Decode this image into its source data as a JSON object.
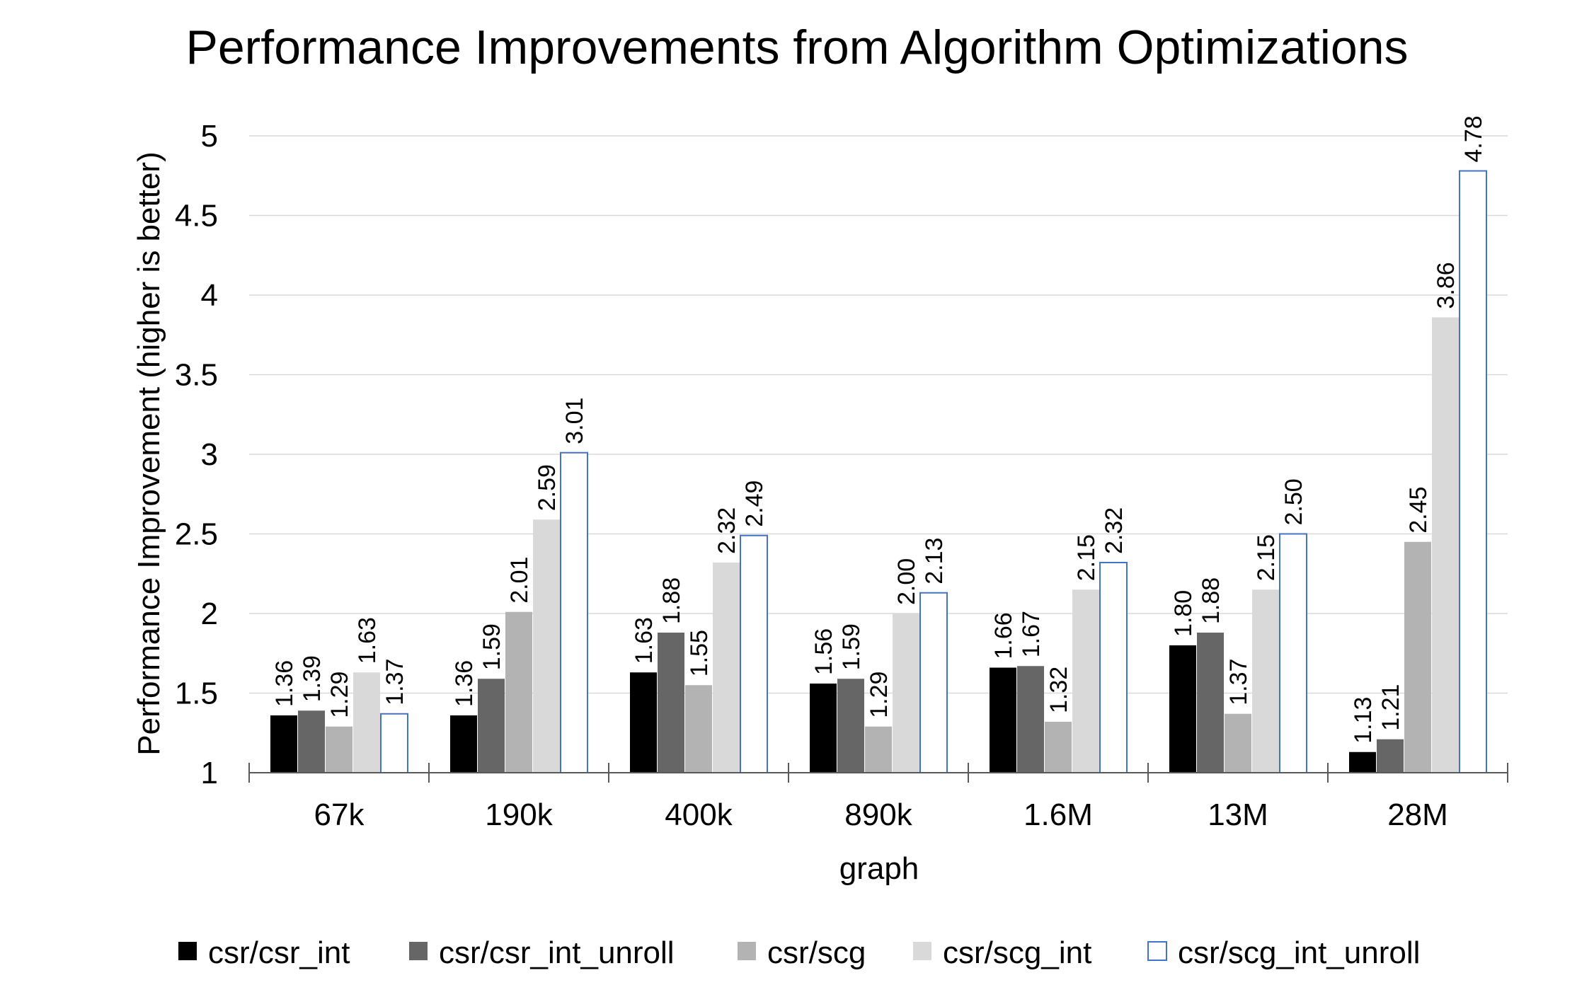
{
  "chart_data": {
    "type": "bar",
    "title": "Performance Improvements from Algorithm Optimizations",
    "xlabel": "graph",
    "ylabel": "Performance Improvement (higher is better)",
    "ylim": [
      1,
      5
    ],
    "yticks": [
      "1",
      "1.5",
      "2",
      "2.5",
      "3",
      "3.5",
      "4",
      "4.5",
      "5"
    ],
    "categories": [
      "67k",
      "190k",
      "400k",
      "890k",
      "1.6M",
      "13M",
      "28M"
    ],
    "grid": true,
    "legend_position": "bottom",
    "series": [
      {
        "name": "csr/csr_int",
        "color": "#000000",
        "outline": "#000000",
        "values": [
          1.36,
          1.36,
          1.63,
          1.56,
          1.66,
          1.8,
          1.13
        ],
        "labels": [
          "1.36",
          "1.36",
          "1.63",
          "1.56",
          "1.66",
          "1.80",
          "1.13"
        ]
      },
      {
        "name": "csr/csr_int_unroll",
        "color": "#666666",
        "outline": "#666666",
        "values": [
          1.39,
          1.59,
          1.88,
          1.59,
          1.67,
          1.88,
          1.21
        ],
        "labels": [
          "1.39",
          "1.59",
          "1.88",
          "1.59",
          "1.67",
          "1.88",
          "1.21"
        ]
      },
      {
        "name": "csr/scg",
        "color": "#b3b3b3",
        "outline": "#b3b3b3",
        "values": [
          1.29,
          2.01,
          1.55,
          1.29,
          1.32,
          1.37,
          2.45
        ],
        "labels": [
          "1.29",
          "2.01",
          "1.55",
          "1.29",
          "1.32",
          "1.37",
          "2.45"
        ]
      },
      {
        "name": "csr/scg_int",
        "color": "#d9d9d9",
        "outline": "#d9d9d9",
        "values": [
          1.63,
          2.59,
          2.32,
          2.0,
          2.15,
          2.15,
          3.86
        ],
        "labels": [
          "1.63",
          "2.59",
          "2.32",
          "2.00",
          "2.15",
          "2.15",
          "3.86"
        ]
      },
      {
        "name": "csr/scg_int_unroll",
        "color": "#ffffff",
        "outline": "#4472c4",
        "values": [
          1.37,
          3.01,
          2.49,
          2.13,
          2.32,
          2.5,
          4.78
        ],
        "labels": [
          "1.37",
          "3.01",
          "2.49",
          "2.13",
          "2.32",
          "2.50",
          "4.78"
        ]
      }
    ]
  }
}
